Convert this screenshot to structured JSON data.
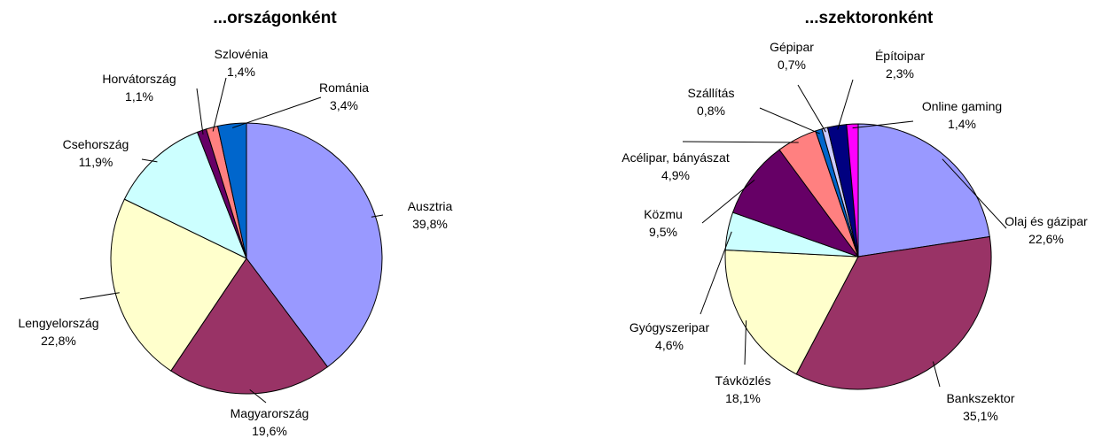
{
  "chart_data": [
    {
      "type": "pie",
      "title": "...országonként",
      "categories": [
        "Ausztria",
        "Magyarország",
        "Lengyelország",
        "Csehország",
        "Horvátország",
        "Szlovénia",
        "Románia"
      ],
      "values": [
        39.8,
        19.6,
        22.8,
        11.9,
        1.1,
        1.4,
        3.4
      ],
      "value_labels": [
        "39,8%",
        "19,6%",
        "22,8%",
        "11,9%",
        "1,1%",
        "1,4%",
        "3,4%"
      ],
      "colors": [
        "#9999ff",
        "#993366",
        "#ffffcc",
        "#ccffff",
        "#660066",
        "#ff8080",
        "#0066cc"
      ]
    },
    {
      "type": "pie",
      "title": "...szektoronként",
      "categories": [
        "Olaj és gázipar",
        "Bankszektor",
        "Távközlés",
        "Gyógyszeripar",
        "Közmu",
        "Acélipar, bányászat",
        "Szállítás",
        "Gépipar",
        "Építoipar",
        "Online gaming"
      ],
      "values": [
        22.6,
        35.1,
        18.1,
        4.6,
        9.5,
        4.9,
        0.8,
        0.7,
        2.3,
        1.4
      ],
      "value_labels": [
        "22,6%",
        "35,1%",
        "18,1%",
        "4,6%",
        "9,5%",
        "4,9%",
        "0,8%",
        "0,7%",
        "2,3%",
        "1,4%"
      ],
      "colors": [
        "#9999ff",
        "#993366",
        "#ffffcc",
        "#ccffff",
        "#660066",
        "#ff8080",
        "#0066cc",
        "#ccccff",
        "#000080",
        "#ff00ff"
      ]
    }
  ]
}
